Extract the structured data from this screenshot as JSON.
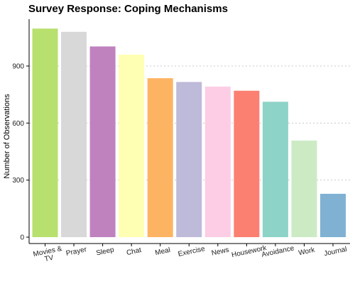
{
  "chart_data": {
    "type": "bar",
    "title": "Survey Response: Coping Mechanisms",
    "xlabel": "",
    "ylabel": "Number of Observations",
    "ylim": [
      0,
      1100
    ],
    "yticks": [
      0,
      300,
      600,
      900
    ],
    "grid": "horizontal-dotted",
    "legend": "none",
    "categories": [
      {
        "label": "Movies &\nTV",
        "value": 1097,
        "color": "#b8e06e"
      },
      {
        "label": "Prayer",
        "value": 1080,
        "color": "#d8d8d8"
      },
      {
        "label": "Sleep",
        "value": 1003,
        "color": "#bf82bf"
      },
      {
        "label": "Chat",
        "value": 960,
        "color": "#ffffb3"
      },
      {
        "label": "Meal",
        "value": 836,
        "color": "#fdb462"
      },
      {
        "label": "Exercise",
        "value": 816,
        "color": "#bebada"
      },
      {
        "label": "News",
        "value": 792,
        "color": "#fccde5"
      },
      {
        "label": "Housework",
        "value": 770,
        "color": "#fb8072"
      },
      {
        "label": "Avoidance",
        "value": 712,
        "color": "#8dd3c7"
      },
      {
        "label": "Work",
        "value": 508,
        "color": "#ccebc5"
      },
      {
        "label": "Journal",
        "value": 228,
        "color": "#80b1d3"
      }
    ]
  }
}
